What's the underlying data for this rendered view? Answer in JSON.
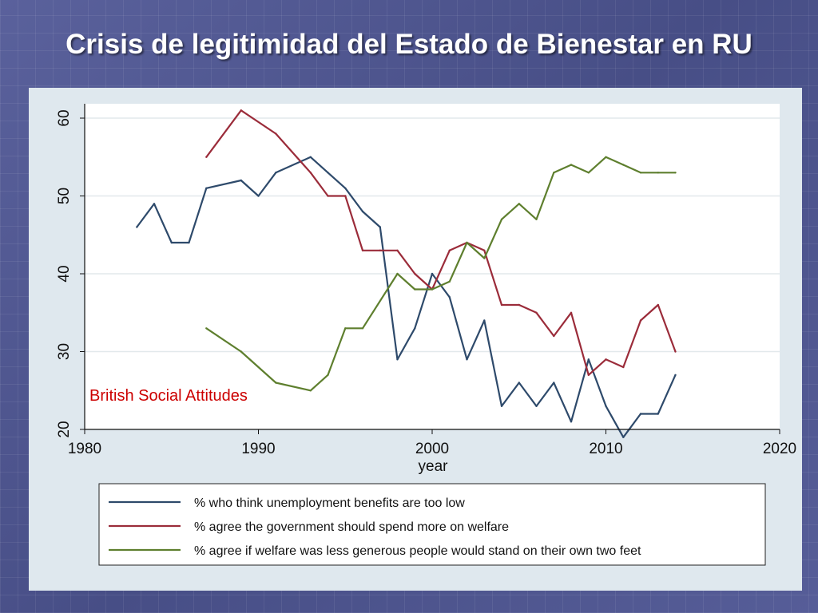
{
  "slide": {
    "title": "Crisis de legitimidad del Estado de Bienestar en RU"
  },
  "chart_data": {
    "type": "line",
    "xlabel": "year",
    "ylabel": "",
    "xlim": [
      1980,
      2020
    ],
    "ylim": [
      20,
      60
    ],
    "x_ticks": [
      "1980",
      "1990",
      "2000",
      "2010",
      "2020"
    ],
    "y_ticks": [
      "20",
      "30",
      "40",
      "50",
      "60"
    ],
    "grid": true,
    "legend_position": "bottom",
    "annotation": {
      "text": "British Social Attitudes",
      "color": "#cc0000"
    },
    "series": [
      {
        "name": "% who think unemployment benefits are too low",
        "color": "#2e4a6b",
        "x": [
          1983,
          1984,
          1985,
          1986,
          1987,
          1989,
          1990,
          1991,
          1993,
          1994,
          1995,
          1996,
          1997,
          1998,
          1999,
          2000,
          2001,
          2002,
          2003,
          2004,
          2005,
          2006,
          2007,
          2008,
          2009,
          2010,
          2011,
          2012,
          2013,
          2014
        ],
        "y": [
          46,
          49,
          44,
          44,
          51,
          52,
          50,
          53,
          55,
          53,
          51,
          48,
          46,
          29,
          33,
          40,
          37,
          29,
          34,
          23,
          26,
          23,
          26,
          21,
          29,
          23,
          19,
          22,
          22,
          27
        ]
      },
      {
        "name": "% agree the government should spend more on welfare",
        "color": "#9b2c3a",
        "x": [
          1987,
          1989,
          1991,
          1993,
          1994,
          1995,
          1996,
          1997,
          1998,
          1999,
          2000,
          2001,
          2002,
          2003,
          2004,
          2005,
          2006,
          2007,
          2008,
          2009,
          2010,
          2011,
          2012,
          2013,
          2014
        ],
        "y": [
          55,
          61,
          58,
          53,
          50,
          50,
          43,
          43,
          43,
          40,
          38,
          43,
          44,
          43,
          36,
          36,
          35,
          32,
          35,
          27,
          29,
          28,
          34,
          36,
          30
        ]
      },
      {
        "name": "% agree if welfare was less generous people would stand on their own two feet",
        "color": "#5e7f2e",
        "x": [
          1987,
          1989,
          1991,
          1993,
          1994,
          1995,
          1996,
          1998,
          1999,
          2000,
          2001,
          2002,
          2003,
          2004,
          2005,
          2006,
          2007,
          2008,
          2009,
          2010,
          2011,
          2012,
          2013,
          2014
        ],
        "y": [
          33,
          30,
          26,
          25,
          27,
          33,
          33,
          40,
          38,
          38,
          39,
          44,
          42,
          47,
          49,
          47,
          53,
          54,
          53,
          55,
          54,
          53,
          53,
          53
        ]
      }
    ]
  }
}
